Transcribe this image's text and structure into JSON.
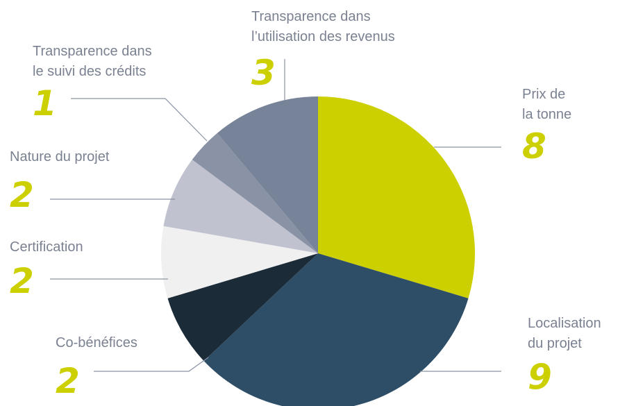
{
  "chart_data": {
    "type": "pie",
    "categories": [
      "Prix de\nla tonne",
      "Localisation\ndu projet",
      "Co-bénéfices",
      "Certification",
      "Nature du projet",
      "Transparence dans\nle suivi des crédits",
      "Transparence dans\nl’utilisation des revenus"
    ],
    "values": [
      8,
      9,
      2,
      2,
      2,
      1,
      3
    ],
    "colors": [
      "#cdd000",
      "#2e4d66",
      "#1c2b38",
      "#f0f0f0",
      "#c0c3cf",
      "#8a92a5",
      "#778399"
    ]
  }
}
